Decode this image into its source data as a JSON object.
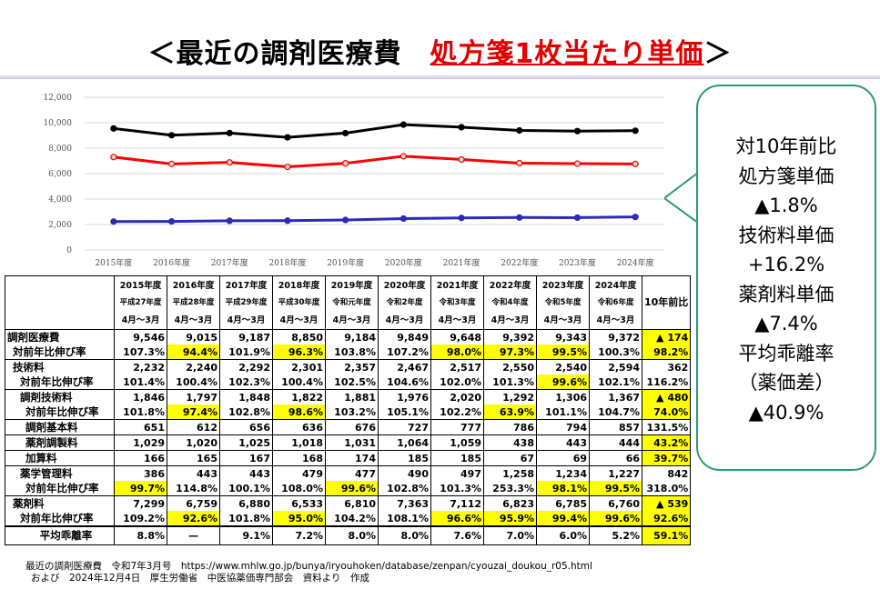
{
  "title": {
    "prefix": "＜最近の調剤医療費　",
    "highlight": "処方箋1枚当たり単価",
    "suffix": "＞"
  },
  "callout": {
    "lines": [
      "対10年前比",
      "処方箋単価",
      "▲1.8%",
      "技術料単価",
      "+16.2%",
      "薬剤料単価",
      "▲7.4%",
      "平均乖離率",
      "（薬価差）",
      "▲40.9%"
    ]
  },
  "colors": {
    "total": "#000000",
    "drug": "#ff0000",
    "tech": "#2b2bb8",
    "highlight": "#ffff00",
    "callout_border": "#2e9a6a"
  },
  "chart_data": {
    "type": "line",
    "categories": [
      "2015年度",
      "2016年度",
      "2017年度",
      "2018年度",
      "2019年度",
      "2020年度",
      "2021年度",
      "2022年度",
      "2023年度",
      "2024年度"
    ],
    "yticks": [
      "0",
      "2,000",
      "4,000",
      "6,000",
      "8,000",
      "10,000",
      "12,000"
    ],
    "ylim": [
      0,
      12000
    ],
    "grid": true,
    "series": [
      {
        "name": "調剤医療費",
        "color": "#000000",
        "values": [
          9546,
          9015,
          9187,
          8850,
          9184,
          9849,
          9648,
          9392,
          9343,
          9372
        ]
      },
      {
        "name": "薬剤料",
        "color": "#ff0000",
        "values": [
          7299,
          6759,
          6880,
          6533,
          6810,
          7363,
          7112,
          6823,
          6785,
          6760
        ]
      },
      {
        "name": "技術料",
        "color": "#2b2bb8",
        "values": [
          2232,
          2240,
          2292,
          2301,
          2357,
          2467,
          2517,
          2550,
          2540,
          2594
        ]
      }
    ]
  },
  "table": {
    "header": [
      {
        "y": "2015年度",
        "era": "平成27年度",
        "m": "4月～3月"
      },
      {
        "y": "2016年度",
        "era": "平成28年度",
        "m": "4月～3月"
      },
      {
        "y": "2017年度",
        "era": "平成29年度",
        "m": "4月～3月"
      },
      {
        "y": "2018年度",
        "era": "平成30年度",
        "m": "4月～3月"
      },
      {
        "y": "2019年度",
        "era": "令和元年度",
        "m": "4月～3月"
      },
      {
        "y": "2020年度",
        "era": "令和2年度",
        "m": "4月～3月"
      },
      {
        "y": "2021年度",
        "era": "令和3年度",
        "m": "4月～3月"
      },
      {
        "y": "2022年度",
        "era": "令和4年度",
        "m": "4月～3月"
      },
      {
        "y": "2023年度",
        "era": "令和5年度",
        "m": "4月～3月"
      },
      {
        "y": "2024年度",
        "era": "令和6年度",
        "m": "4月～3月"
      }
    ],
    "last_header": "10年前比",
    "rows": [
      {
        "label": "調剤医療費",
        "lvl": 0,
        "cls": "first",
        "values": [
          "9,546",
          "9,015",
          "9,187",
          "8,850",
          "9,184",
          "9,849",
          "9,648",
          "9,392",
          "9,343",
          "9,372",
          "▲ 174"
        ],
        "hl": [
          10
        ]
      },
      {
        "label": "対前年比伸び率",
        "lvl": 1,
        "cls": "sub",
        "values": [
          "107.3%",
          "94.4%",
          "101.9%",
          "96.3%",
          "103.8%",
          "107.2%",
          "98.0%",
          "97.3%",
          "99.5%",
          "100.3%",
          "98.2%"
        ],
        "hl": [
          1,
          3,
          6,
          7,
          8,
          10
        ]
      },
      {
        "label": "技術料",
        "lvl": 1,
        "cls": "first",
        "values": [
          "2,232",
          "2,240",
          "2,292",
          "2,301",
          "2,357",
          "2,467",
          "2,517",
          "2,550",
          "2,540",
          "2,594",
          "362"
        ],
        "hl": []
      },
      {
        "label": "対前年比伸び率",
        "lvl": 2,
        "cls": "sub",
        "values": [
          "101.4%",
          "100.4%",
          "102.3%",
          "100.4%",
          "102.5%",
          "104.6%",
          "102.0%",
          "101.3%",
          "99.6%",
          "102.1%",
          "116.2%"
        ],
        "hl": [
          8
        ]
      },
      {
        "label": "調剤技術料",
        "lvl": 2,
        "cls": "first",
        "values": [
          "1,846",
          "1,797",
          "1,848",
          "1,822",
          "1,881",
          "1,976",
          "2,020",
          "1,292",
          "1,306",
          "1,367",
          "▲ 480"
        ],
        "hl": [
          10
        ]
      },
      {
        "label": "対前年比伸び率",
        "lvl": 3,
        "cls": "sub",
        "values": [
          "101.8%",
          "97.4%",
          "102.8%",
          "98.6%",
          "103.2%",
          "105.1%",
          "102.2%",
          "63.9%",
          "101.1%",
          "104.7%",
          "74.0%"
        ],
        "hl": [
          1,
          3,
          7,
          10
        ]
      },
      {
        "label": "調剤基本料",
        "lvl": 3,
        "cls": "dot",
        "values": [
          "651",
          "612",
          "656",
          "636",
          "676",
          "727",
          "777",
          "786",
          "794",
          "857",
          "131.5%"
        ],
        "hl": []
      },
      {
        "label": "薬剤調製料",
        "lvl": 3,
        "cls": "dot",
        "values": [
          "1,029",
          "1,020",
          "1,025",
          "1,018",
          "1,031",
          "1,064",
          "1,059",
          "438",
          "443",
          "444",
          "43.2%"
        ],
        "hl": [
          10
        ]
      },
      {
        "label": "加算料",
        "lvl": 3,
        "cls": "",
        "values": [
          "166",
          "165",
          "167",
          "168",
          "174",
          "185",
          "185",
          "67",
          "69",
          "66",
          "39.7%"
        ],
        "hl": [
          10
        ]
      },
      {
        "label": "薬学管理料",
        "lvl": 2,
        "cls": "first",
        "values": [
          "386",
          "443",
          "443",
          "479",
          "477",
          "490",
          "497",
          "1,258",
          "1,234",
          "1,227",
          "842"
        ],
        "hl": []
      },
      {
        "label": "対前年比伸び率",
        "lvl": 3,
        "cls": "sub",
        "values": [
          "99.7%",
          "114.8%",
          "100.1%",
          "108.0%",
          "99.6%",
          "102.8%",
          "101.3%",
          "253.3%",
          "98.1%",
          "99.5%",
          "318.0%"
        ],
        "hl": [
          0,
          4,
          8,
          9
        ]
      },
      {
        "label": "薬剤料",
        "lvl": 1,
        "cls": "first",
        "values": [
          "7,299",
          "6,759",
          "6,880",
          "6,533",
          "6,810",
          "7,363",
          "7,112",
          "6,823",
          "6,785",
          "6,760",
          "▲ 539"
        ],
        "hl": [
          10
        ]
      },
      {
        "label": "対前年比伸び率",
        "lvl": 2,
        "cls": "sub",
        "values": [
          "109.2%",
          "92.6%",
          "101.8%",
          "95.0%",
          "104.2%",
          "108.1%",
          "96.6%",
          "95.9%",
          "99.4%",
          "99.6%",
          "92.6%"
        ],
        "hl": [
          1,
          3,
          6,
          7,
          8,
          9,
          10
        ]
      },
      {
        "label": "平均乖離率",
        "lvl": 2,
        "cls": "avg",
        "values": [
          "8.8%",
          "—",
          "9.1%",
          "7.2%",
          "8.0%",
          "8.0%",
          "7.6%",
          "7.0%",
          "6.0%",
          "5.2%",
          "59.1%"
        ],
        "hl": [
          10
        ]
      }
    ]
  },
  "footer": {
    "line1_prefix": "最近の調剤医療費　令和7年3月号　",
    "url": "https://www.mhlw.go.jp/bunya/iryouhoken/database/zenpan/cyouzai_doukou_r05.html",
    "line2": "および　2024年12月4日　厚生労働省　中医協薬価専門部会　資料より　作成"
  }
}
